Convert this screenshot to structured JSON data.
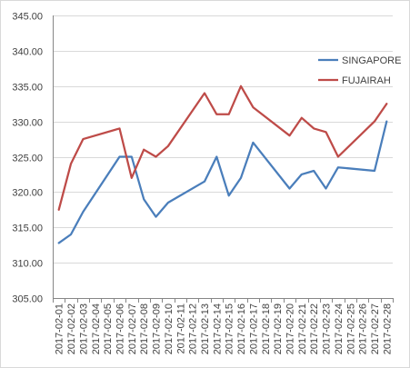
{
  "chart_data": {
    "type": "line",
    "title": "",
    "xlabel": "",
    "ylabel": "",
    "ylim": [
      305,
      345
    ],
    "yticks": [
      305,
      310,
      315,
      320,
      325,
      330,
      335,
      340,
      345
    ],
    "ytick_labels": [
      "305.00",
      "310.00",
      "315.00",
      "320.00",
      "325.00",
      "330.00",
      "335.00",
      "340.00",
      "345.00"
    ],
    "grid": "horizontal",
    "legend_position": "right",
    "categories": [
      "2017-02-01",
      "2017-02-02",
      "2017-02-03",
      "2017-02-04",
      "2017-02-05",
      "2017-02-06",
      "2017-02-07",
      "2017-02-08",
      "2017-02-09",
      "2017-02-10",
      "2017-02-11",
      "2017-02-12",
      "2017-02-13",
      "2017-02-14",
      "2017-02-15",
      "2017-02-16",
      "2017-02-17",
      "2017-02-18",
      "2017-02-19",
      "2017-02-20",
      "2017-02-21",
      "2017-02-22",
      "2017-02-23",
      "2017-02-24",
      "2017-02-25",
      "2017-02-26",
      "2017-02-27",
      "2017-02-28"
    ],
    "series": [
      {
        "name": "SINGAPORE",
        "color": "#4a7ebb",
        "points": [
          {
            "x": "2017-02-01",
            "y": 312.8
          },
          {
            "x": "2017-02-02",
            "y": 314.0
          },
          {
            "x": "2017-02-03",
            "y": 317.2
          },
          {
            "x": "2017-02-06",
            "y": 325.0
          },
          {
            "x": "2017-02-07",
            "y": 325.0
          },
          {
            "x": "2017-02-08",
            "y": 319.0
          },
          {
            "x": "2017-02-09",
            "y": 316.5
          },
          {
            "x": "2017-02-10",
            "y": 318.5
          },
          {
            "x": "2017-02-13",
            "y": 321.5
          },
          {
            "x": "2017-02-14",
            "y": 325.0
          },
          {
            "x": "2017-02-15",
            "y": 319.5
          },
          {
            "x": "2017-02-16",
            "y": 322.0
          },
          {
            "x": "2017-02-17",
            "y": 327.0
          },
          {
            "x": "2017-02-20",
            "y": 320.5
          },
          {
            "x": "2017-02-21",
            "y": 322.5
          },
          {
            "x": "2017-02-22",
            "y": 323.0
          },
          {
            "x": "2017-02-23",
            "y": 320.5
          },
          {
            "x": "2017-02-24",
            "y": 323.5
          },
          {
            "x": "2017-02-27",
            "y": 323.0
          },
          {
            "x": "2017-02-28",
            "y": 330.0
          }
        ]
      },
      {
        "name": "FUJAIRAH",
        "color": "#be4b48",
        "points": [
          {
            "x": "2017-02-01",
            "y": 317.5
          },
          {
            "x": "2017-02-02",
            "y": 324.0
          },
          {
            "x": "2017-02-03",
            "y": 327.5
          },
          {
            "x": "2017-02-06",
            "y": 329.0
          },
          {
            "x": "2017-02-07",
            "y": 322.0
          },
          {
            "x": "2017-02-08",
            "y": 326.0
          },
          {
            "x": "2017-02-09",
            "y": 325.0
          },
          {
            "x": "2017-02-10",
            "y": 326.5
          },
          {
            "x": "2017-02-13",
            "y": 334.0
          },
          {
            "x": "2017-02-14",
            "y": 331.0
          },
          {
            "x": "2017-02-15",
            "y": 331.0
          },
          {
            "x": "2017-02-16",
            "y": 335.0
          },
          {
            "x": "2017-02-17",
            "y": 332.0
          },
          {
            "x": "2017-02-20",
            "y": 328.0
          },
          {
            "x": "2017-02-21",
            "y": 330.5
          },
          {
            "x": "2017-02-22",
            "y": 329.0
          },
          {
            "x": "2017-02-23",
            "y": 328.5
          },
          {
            "x": "2017-02-24",
            "y": 325.0
          },
          {
            "x": "2017-02-27",
            "y": 330.0
          },
          {
            "x": "2017-02-28",
            "y": 332.5
          }
        ]
      }
    ]
  },
  "colors": {
    "grid": "#d9d9d9",
    "axis": "#868686",
    "text": "#404040"
  }
}
